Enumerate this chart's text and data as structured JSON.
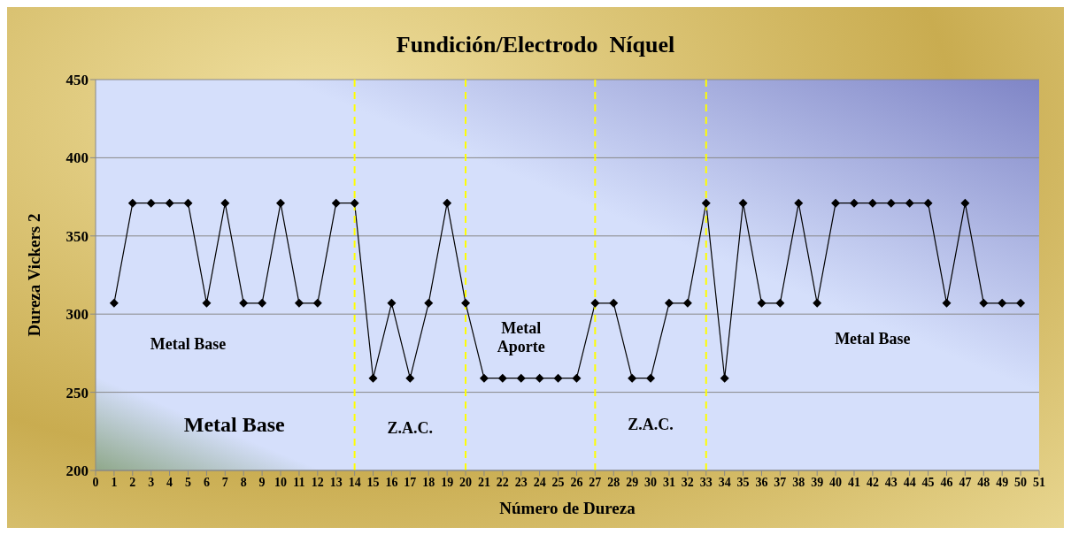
{
  "chart_data": {
    "type": "line",
    "title": "Fundición/Electrodo  Níquel",
    "xlabel": "Número de Dureza",
    "ylabel": "Dureza  Vickers 2",
    "x": [
      1,
      2,
      3,
      4,
      5,
      6,
      7,
      8,
      9,
      10,
      11,
      12,
      13,
      14,
      15,
      16,
      17,
      18,
      19,
      20,
      21,
      22,
      23,
      24,
      25,
      26,
      27,
      28,
      29,
      30,
      31,
      32,
      33,
      34,
      35,
      36,
      37,
      38,
      39,
      40,
      41,
      42,
      43,
      44,
      45,
      46,
      47,
      48,
      49,
      50
    ],
    "series": [
      {
        "color": "#000000",
        "values": [
          307,
          371,
          371,
          371,
          371,
          307,
          371,
          307,
          307,
          371,
          307,
          307,
          371,
          371,
          259,
          307,
          259,
          307,
          371,
          307,
          259,
          259,
          259,
          259,
          259,
          259,
          307,
          307,
          259,
          259,
          307,
          307,
          371,
          259,
          371,
          307,
          307,
          371,
          307,
          371,
          371,
          371,
          371,
          371,
          371,
          307,
          371,
          307,
          307,
          307
        ]
      }
    ],
    "xlim": [
      0,
      51
    ],
    "xticks": [
      0,
      1,
      2,
      3,
      4,
      5,
      6,
      7,
      8,
      9,
      10,
      11,
      12,
      13,
      14,
      15,
      16,
      17,
      18,
      19,
      20,
      21,
      22,
      23,
      24,
      25,
      26,
      27,
      28,
      29,
      30,
      31,
      32,
      33,
      34,
      35,
      36,
      37,
      38,
      39,
      40,
      41,
      42,
      43,
      44,
      45,
      46,
      47,
      48,
      49,
      50,
      51
    ],
    "ylim": [
      200,
      450
    ],
    "yticks": [
      200,
      250,
      300,
      350,
      400,
      450
    ],
    "grid": "y",
    "marker": "diamond",
    "line_style": "solid",
    "ref_lines": [
      {
        "axis": "x",
        "value": 14,
        "color": "#ffff00",
        "line_style": "dashed"
      },
      {
        "axis": "x",
        "value": 20,
        "color": "#ffff00",
        "line_style": "dashed"
      },
      {
        "axis": "x",
        "value": 27,
        "color": "#ffff00",
        "line_style": "dashed"
      },
      {
        "axis": "x",
        "value": 33,
        "color": "#ffff00",
        "line_style": "dashed"
      }
    ],
    "annotations": [
      "Metal Base",
      "Metal Base",
      "Z.A.C.",
      "Metal\nAporte",
      "Z.A.C.",
      "Metal Base"
    ]
  }
}
